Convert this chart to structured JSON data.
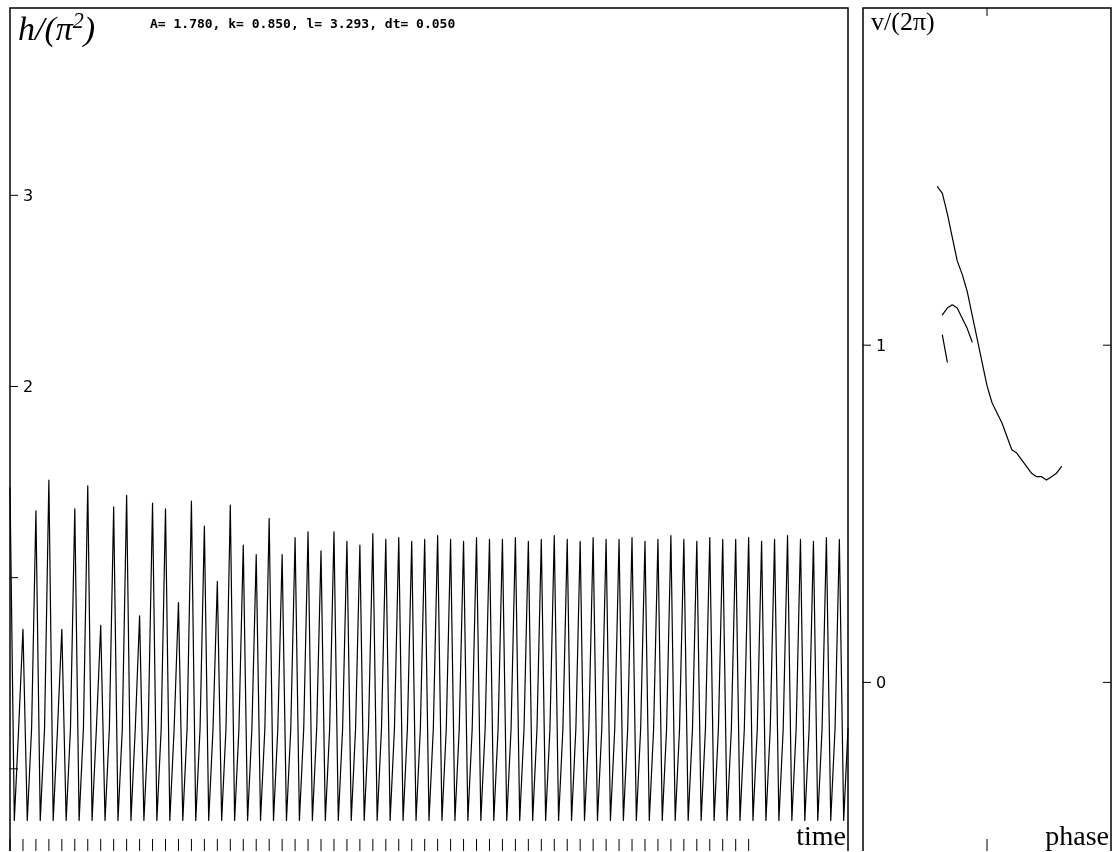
{
  "chart_data": [
    {
      "type": "line",
      "title": "A= 1.780, k= 0.850, l= 3.293, dt= 0.050",
      "ylabel": "h/(π$^{2}$)",
      "xlabel": "time",
      "tick_labels": "y",
      "ylim": [
        -0.43,
        3.98
      ],
      "yticks": [
        {
          "value": 0,
          "label": null
        },
        {
          "value": 1,
          "label": null
        },
        2,
        3
      ],
      "categories": [
        null,
        null,
        null,
        null,
        null,
        null,
        null,
        null,
        null,
        null,
        null,
        null,
        null,
        null,
        null,
        null,
        null,
        null,
        null,
        null,
        null,
        null,
        null,
        null,
        null,
        null,
        null,
        null,
        null,
        null,
        null,
        null,
        null,
        null,
        null,
        null,
        null,
        null,
        null,
        null,
        null,
        null,
        null,
        null,
        null,
        null,
        null,
        null,
        null,
        null,
        null,
        null,
        null,
        null,
        null,
        null,
        null,
        null,
        null,
        null,
        null,
        null,
        null,
        null,
        null,
        null,
        null,
        null,
        null,
        null,
        null,
        null,
        null,
        null,
        null,
        null,
        null,
        null,
        null,
        null,
        null,
        null,
        null,
        null,
        null,
        null,
        null,
        null,
        null,
        null,
        null,
        null,
        null,
        null,
        null,
        null,
        null,
        null,
        null,
        null,
        null,
        null,
        null,
        null,
        null,
        null,
        null,
        null,
        null,
        null,
        null,
        null,
        null,
        null,
        null,
        null,
        null,
        null,
        null,
        null,
        null,
        null,
        null,
        null,
        null,
        null,
        null,
        null,
        null,
        null,
        null,
        null,
        null,
        null,
        null,
        null,
        null,
        null,
        null,
        null,
        null,
        null,
        null,
        null,
        null,
        null,
        null,
        null,
        null,
        null,
        null,
        null,
        null,
        null,
        null,
        null,
        null,
        null,
        null,
        null,
        null,
        null,
        null,
        null,
        null,
        null,
        null,
        null,
        null,
        null,
        null,
        null,
        null,
        null,
        null,
        null,
        null,
        null,
        null,
        null,
        null,
        null,
        null,
        null,
        null,
        null,
        null,
        null,
        null,
        null,
        null,
        null,
        null,
        null,
        null
      ],
      "series": [
        {
          "color": "#000000",
          "values": [
            1.47,
            -0.27,
            0.21,
            0.73,
            -0.27,
            0.21,
            1.35,
            -0.27,
            0.21,
            1.51,
            -0.27,
            0.21,
            0.73,
            -0.27,
            0.21,
            1.36,
            -0.27,
            0.21,
            1.48,
            -0.27,
            0.21,
            0.75,
            -0.27,
            0.21,
            1.37,
            -0.27,
            0.21,
            1.43,
            -0.27,
            0.21,
            0.8,
            -0.27,
            0.21,
            1.39,
            -0.27,
            0.21,
            1.36,
            -0.27,
            0.21,
            0.87,
            -0.27,
            0.21,
            1.4,
            -0.27,
            0.21,
            1.27,
            -0.27,
            0.21,
            0.98,
            -0.27,
            0.21,
            1.38,
            -0.27,
            0.21,
            1.17,
            -0.27,
            0.21,
            1.12,
            -0.27,
            0.21,
            1.31,
            -0.27,
            0.21,
            1.12,
            -0.27,
            0.21,
            1.21,
            -0.27,
            0.21,
            1.24,
            -0.27,
            0.21,
            1.14,
            -0.27,
            0.21,
            1.24,
            -0.27,
            0.21,
            1.19,
            -0.27,
            0.21,
            1.17,
            -0.27,
            0.21,
            1.23,
            -0.27,
            0.21,
            1.2,
            -0.27,
            0.21,
            1.21,
            -0.27,
            0.21,
            1.19,
            -0.27,
            0.21,
            1.2,
            -0.27,
            0.21,
            1.22,
            -0.27,
            0.21,
            1.2,
            -0.27,
            0.21,
            1.19,
            -0.27,
            0.21,
            1.21,
            -0.27,
            0.21,
            1.2,
            -0.27,
            0.21,
            1.2,
            -0.27,
            0.21,
            1.21,
            -0.27,
            0.21,
            1.19,
            -0.27,
            0.21,
            1.2,
            -0.27,
            0.21,
            1.22,
            -0.27,
            0.21,
            1.2,
            -0.27,
            0.21,
            1.19,
            -0.27,
            0.21,
            1.21,
            -0.27,
            0.21,
            1.2,
            -0.27,
            0.21,
            1.2,
            -0.27,
            0.21,
            1.21,
            -0.27,
            0.21,
            1.19,
            -0.27,
            0.21,
            1.2,
            -0.27,
            0.21,
            1.22,
            -0.27,
            0.21,
            1.2,
            -0.27,
            0.21,
            1.19,
            -0.27,
            0.21,
            1.21,
            -0.27,
            0.21,
            1.2,
            -0.27,
            0.21,
            1.2,
            -0.27,
            0.21,
            1.21,
            -0.27,
            0.21,
            1.19,
            -0.27,
            0.21,
            1.2,
            -0.27,
            0.21,
            1.22,
            -0.27,
            0.21,
            1.2,
            -0.27,
            0.21,
            1.19,
            -0.27,
            0.21,
            1.21,
            -0.27,
            0.21,
            1.2,
            -0.27,
            0.21
          ]
        }
      ]
    },
    {
      "type": "line",
      "ylabel": "v/(2π)",
      "xlabel": "phase",
      "tick_labels": "y",
      "ylim": [
        -0.5,
        2.0
      ],
      "yticks": [
        0,
        1
      ],
      "categories": [
        null,
        null,
        null,
        null,
        null,
        null,
        null,
        null,
        null,
        null,
        null,
        null,
        null,
        null,
        null,
        null,
        null,
        null,
        null,
        null,
        null,
        null,
        null,
        null,
        null,
        null,
        null,
        null,
        null,
        null,
        null,
        null,
        null,
        null,
        null,
        null,
        null,
        null,
        null,
        null,
        null,
        null,
        null,
        null,
        null,
        null,
        null,
        null,
        null,
        null,
        null
      ],
      "series": [
        {
          "color": "#000000",
          "values": [
            null,
            null,
            null,
            null,
            null,
            null,
            null,
            null,
            null,
            null,
            null,
            null,
            null,
            null,
            null,
            1.47,
            1.45,
            1.39,
            1.32,
            1.25,
            1.21,
            1.16,
            1.09,
            1.02,
            0.95,
            0.88,
            0.83,
            0.8,
            0.77,
            0.73,
            0.69,
            0.68,
            0.66,
            0.64,
            0.62,
            0.61,
            0.61,
            0.6,
            0.61,
            0.62,
            0.64,
            null,
            null,
            null,
            null,
            null,
            null,
            null,
            null,
            null,
            null
          ]
        },
        {
          "color": "#000000",
          "values": [
            null,
            null,
            null,
            null,
            null,
            null,
            null,
            null,
            null,
            null,
            null,
            null,
            null,
            null,
            null,
            null,
            1.09,
            1.11,
            1.12,
            1.11,
            1.08,
            1.05,
            1.01,
            null,
            null,
            null,
            null,
            null,
            null,
            null,
            null,
            null,
            null,
            null,
            null,
            null,
            null,
            null,
            null,
            null,
            null,
            null,
            null,
            null,
            null,
            null,
            null,
            null,
            null,
            null,
            null
          ]
        },
        {
          "color": "#000000",
          "values": [
            null,
            null,
            null,
            null,
            null,
            null,
            null,
            null,
            null,
            null,
            null,
            null,
            null,
            null,
            null,
            null,
            1.03,
            0.95,
            null,
            null,
            null,
            null,
            null,
            null,
            null,
            null,
            null,
            null,
            null,
            null,
            null,
            null,
            null,
            null,
            null,
            null,
            null,
            null,
            null,
            null,
            null,
            null,
            null,
            null,
            null,
            null,
            null,
            null,
            null,
            null,
            null
          ]
        }
      ]
    }
  ]
}
